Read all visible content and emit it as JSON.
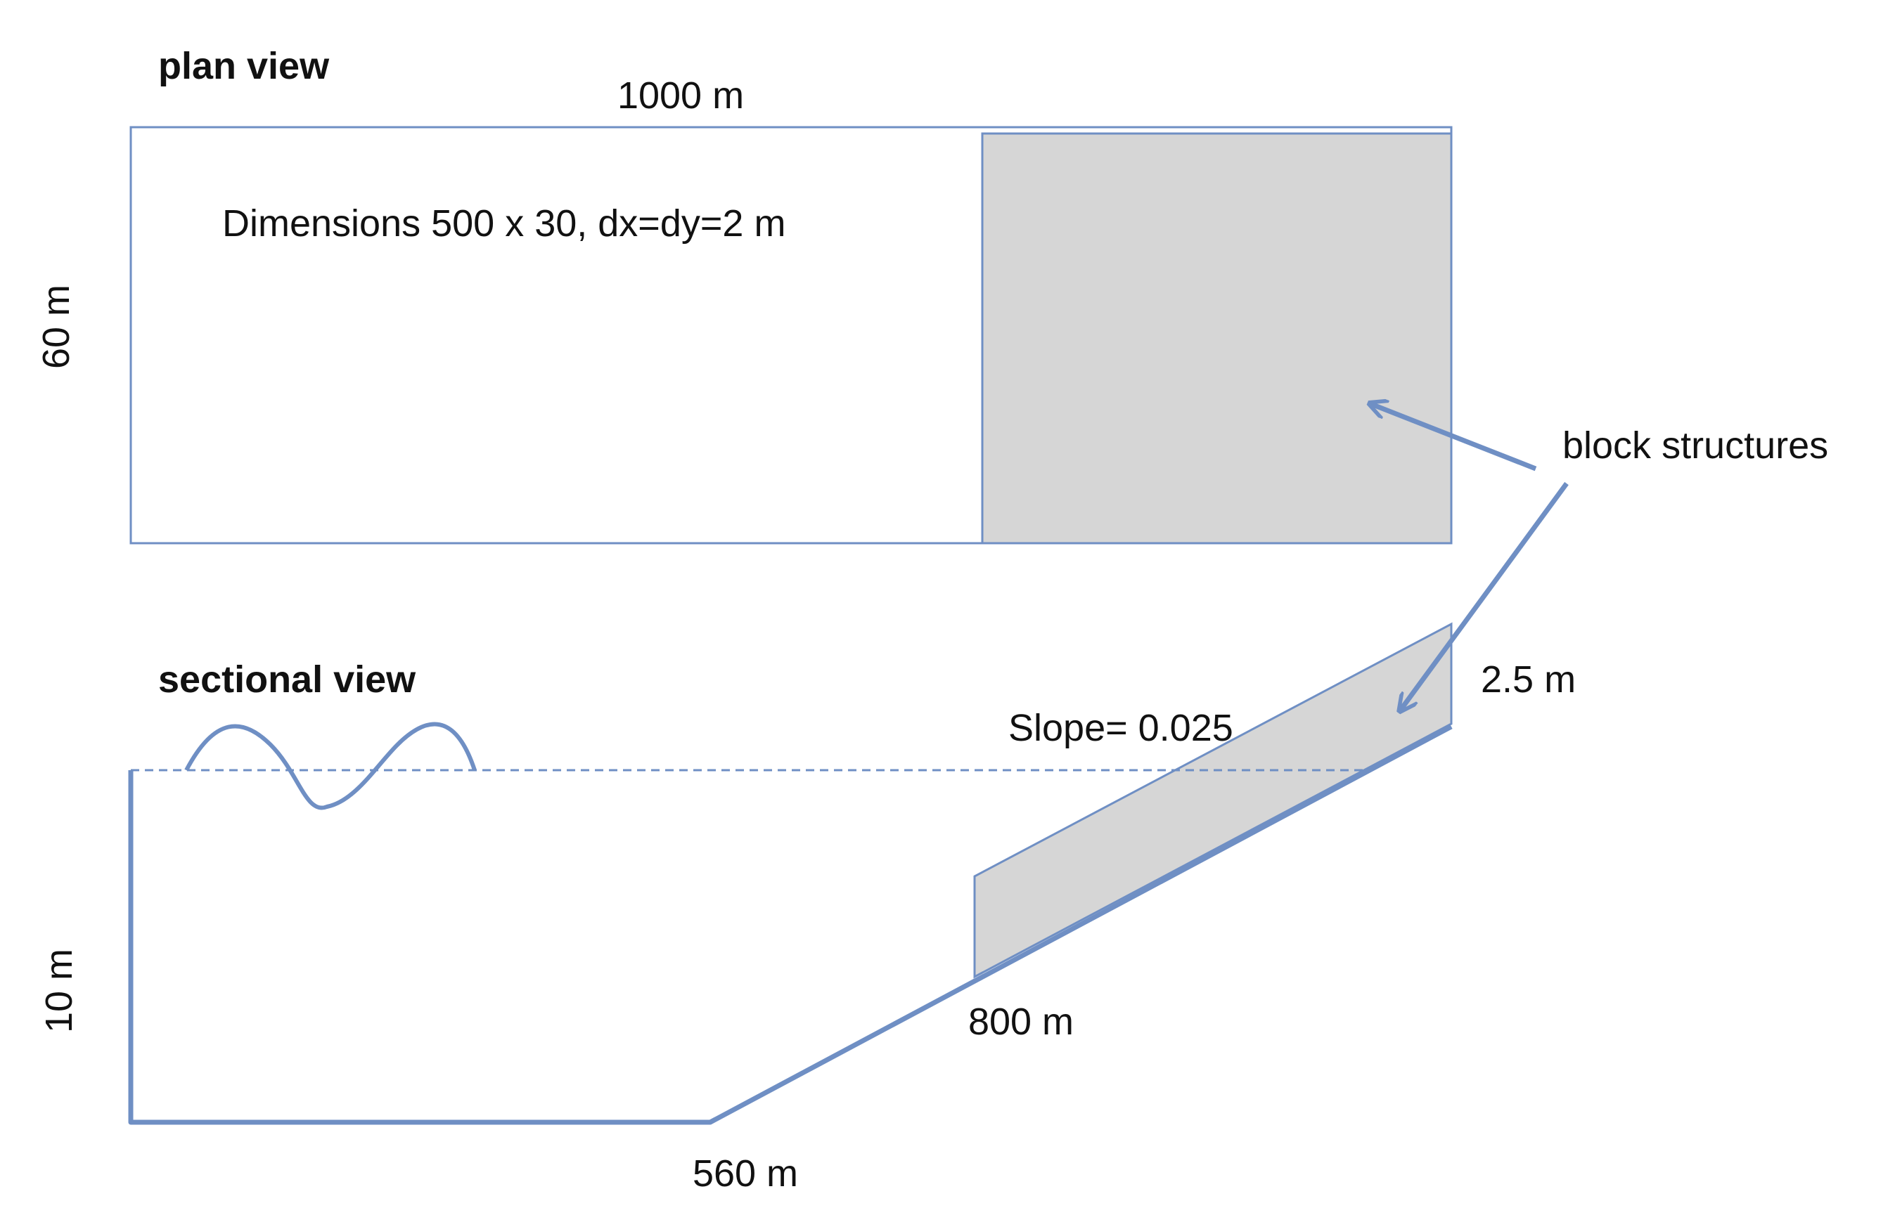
{
  "plan_view": {
    "title": "plan view",
    "length_label": "1000 m",
    "width_label": "60 m",
    "grid_label": "Dimensions 500 x 30, dx=dy=2 m"
  },
  "section_view": {
    "title": "sectional view",
    "depth_label": "10 m",
    "flat_length_label": "560 m",
    "structure_start_label": "800 m",
    "structure_height_label": "2.5 m",
    "slope_label": "Slope= 0.025"
  },
  "annotation": {
    "label": "block structures"
  },
  "colors": {
    "outline": "#6f8fc4",
    "structure_fill": "#d6d6d6",
    "text": "#111111"
  }
}
